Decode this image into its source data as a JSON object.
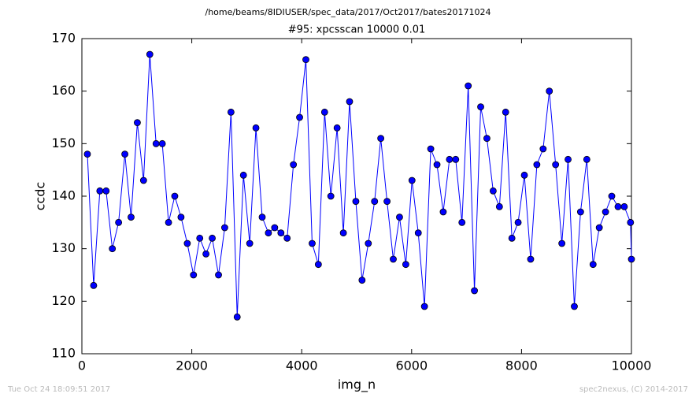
{
  "chart_data": {
    "type": "line",
    "suptitle": "/home/beams/8IDIUSER/spec_data/2017/Oct2017/bates20171024",
    "title": "#95: xpcsscan 10000 0.01",
    "x_label": "img_n",
    "y_label": "ccdc",
    "footer_left": "Tue Oct 24 18:09:51 2017",
    "footer_right": "spec2nexus, (C) 2014-2017",
    "xlim": [
      0,
      10000
    ],
    "xticks": [
      0,
      2000,
      4000,
      6000,
      8000,
      10000
    ],
    "ylim": [
      110,
      170
    ],
    "yticks": [
      110,
      120,
      130,
      140,
      150,
      160,
      170
    ],
    "series": [
      {
        "color": "#0000ff",
        "x": [
          100,
          214,
          327,
          441,
          554,
          668,
          782,
          895,
          1009,
          1122,
          1236,
          1350,
          1463,
          1577,
          1690,
          1804,
          1918,
          2031,
          2145,
          2258,
          2372,
          2486,
          2599,
          2713,
          2826,
          2940,
          3054,
          3167,
          3281,
          3394,
          3508,
          3622,
          3735,
          3849,
          3962,
          4076,
          4190,
          4303,
          4417,
          4530,
          4644,
          4758,
          4871,
          4985,
          5098,
          5212,
          5326,
          5439,
          5553,
          5666,
          5780,
          5894,
          6007,
          6121,
          6234,
          6348,
          6462,
          6575,
          6689,
          6802,
          6916,
          7030,
          7143,
          7257,
          7370,
          7484,
          7598,
          7711,
          7825,
          7938,
          8052,
          8166,
          8279,
          8393,
          8506,
          8620,
          8734,
          8847,
          8961,
          9074,
          9188,
          9302,
          9415,
          9529,
          9642,
          9756,
          9870,
          9983,
          10000
        ],
        "values": [
          148,
          123,
          141,
          141,
          130,
          135,
          148,
          136,
          154,
          143,
          167,
          150,
          150,
          135,
          140,
          136,
          131,
          125,
          132,
          129,
          132,
          125,
          134,
          156,
          117,
          144,
          131,
          153,
          136,
          133,
          134,
          133,
          132,
          146,
          155,
          166,
          131,
          127,
          156,
          140,
          153,
          133,
          158,
          139,
          124,
          131,
          139,
          151,
          139,
          128,
          136,
          127,
          143,
          133,
          119,
          149,
          146,
          137,
          147,
          147,
          135,
          161,
          122,
          157,
          151,
          141,
          138,
          156,
          132,
          135,
          144,
          128,
          146,
          149,
          160,
          146,
          131,
          147,
          119,
          137,
          147,
          127,
          134,
          137,
          140,
          138,
          138,
          135,
          128
        ]
      }
    ]
  }
}
